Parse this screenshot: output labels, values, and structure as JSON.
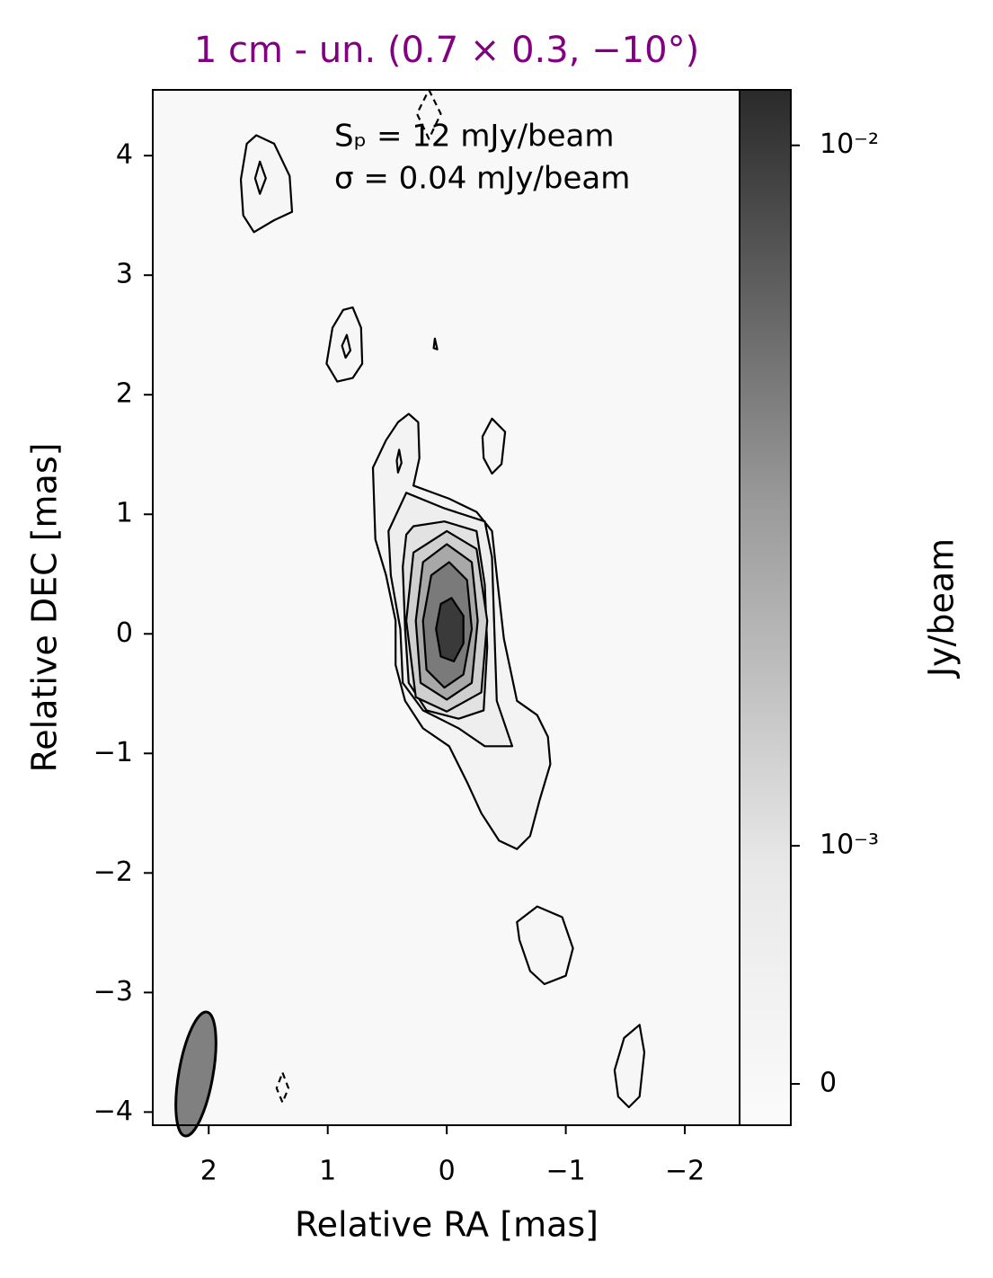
{
  "chart_data": {
    "type": "contour",
    "title": "1 cm - un. (0.7 × 0.3, −10°)",
    "title_color": "#800080",
    "x_label": "Relative RA [mas]",
    "y_label": "Relative DEC [mas]",
    "annotations": [
      "Sₚ = 12 mJy/beam",
      "σ = 0.04 mJy/beam"
    ],
    "xlim": [
      2.47,
      -2.46
    ],
    "ylim": [
      -4.11,
      4.55
    ],
    "xticks": [
      2,
      1,
      0,
      {
        "value": -1,
        "label": "−1"
      },
      {
        "value": -2,
        "label": "−2"
      }
    ],
    "yticks": [
      {
        "value": -4,
        "label": "−4"
      },
      {
        "value": -3,
        "label": "−3"
      },
      {
        "value": -2,
        "label": "−2"
      },
      {
        "value": -1,
        "label": "−1"
      },
      0,
      1,
      2,
      3,
      4
    ],
    "colorbar_label": "Jy/beam",
    "colorbar_scale": "symlog",
    "colorbar_linthresh": 0.0006,
    "colorbar_lim": [
      -0.0003,
      0.012
    ],
    "colorbar_ticks": [
      0,
      {
        "value": 0.001,
        "label": "10⁻³"
      },
      {
        "value": 0.01,
        "label": "10⁻²"
      }
    ],
    "contours": [
      {
        "x": [
          1.6,
          1.45,
          1.32,
          1.3,
          1.45,
          1.62,
          1.71,
          1.73,
          1.68
        ],
        "y": [
          4.17,
          4.1,
          3.83,
          3.53,
          3.46,
          3.36,
          3.5,
          3.8,
          4.1
        ],
        "fill": "#f6f6f6",
        "dashed": false
      },
      {
        "x": [
          1.57,
          1.52,
          1.57,
          1.61
        ],
        "y": [
          3.95,
          3.81,
          3.68,
          3.81
        ],
        "fill": "#f2f2f2",
        "dashed": false
      },
      {
        "x": [
          0.79,
          0.72,
          0.71,
          0.79,
          0.92,
          1.01,
          0.96,
          0.87
        ],
        "y": [
          2.73,
          2.56,
          2.26,
          2.14,
          2.11,
          2.26,
          2.56,
          2.71
        ],
        "fill": "#f6f6f6",
        "dashed": false
      },
      {
        "x": [
          0.84,
          0.81,
          0.85,
          0.88
        ],
        "y": [
          2.5,
          2.37,
          2.31,
          2.41
        ],
        "fill": "#f2f2f2",
        "dashed": false
      },
      {
        "x": [
          0.1,
          0.08,
          0.11
        ],
        "y": [
          2.47,
          2.38,
          2.39
        ],
        "fill": "#f2f2f2",
        "dashed": false
      },
      {
        "x": [
          -0.38,
          -0.49,
          -0.46,
          -0.38,
          -0.31,
          -0.3
        ],
        "y": [
          1.8,
          1.69,
          1.42,
          1.34,
          1.47,
          1.65
        ],
        "fill": "#f6f6f6",
        "dashed": false
      },
      {
        "x": [
          0.32,
          0.24,
          0.23,
          0.28,
          -0.02,
          -0.25,
          -0.38,
          -0.42,
          -0.48,
          -0.59,
          -0.76,
          -0.85,
          -0.87,
          -0.78,
          -0.7,
          -0.59,
          -0.44,
          -0.29,
          -0.17,
          -0.02,
          0.2,
          0.35,
          0.43,
          0.43,
          0.51,
          0.6,
          0.62,
          0.51,
          0.41
        ],
        "y": [
          1.84,
          1.77,
          1.47,
          1.24,
          1.13,
          1.02,
          0.86,
          0.49,
          -0.04,
          -0.56,
          -0.68,
          -0.86,
          -1.09,
          -1.39,
          -1.69,
          -1.8,
          -1.73,
          -1.5,
          -1.24,
          -0.94,
          -0.79,
          -0.56,
          -0.26,
          0.11,
          0.49,
          0.79,
          1.39,
          1.62,
          1.77
        ],
        "fill": "#f3f3f3",
        "dashed": false
      },
      {
        "x": [
          0.4,
          0.38,
          0.41,
          0.42
        ],
        "y": [
          1.54,
          1.43,
          1.35,
          1.45
        ],
        "fill": "#eeeeee",
        "dashed": false
      },
      {
        "x": [
          0.34,
          0.02,
          -0.32,
          -0.38,
          -0.4,
          -0.42,
          -0.55,
          -0.32,
          -0.1,
          0.2,
          0.37,
          0.39,
          0.47,
          0.49
        ],
        "y": [
          1.18,
          1.05,
          0.94,
          0.64,
          0.04,
          -0.56,
          -0.94,
          -0.94,
          -0.79,
          -0.64,
          -0.41,
          0.04,
          0.49,
          0.86
        ],
        "fill": "#eeeeee",
        "dashed": false
      },
      {
        "x": [
          0.28,
          0.02,
          -0.25,
          -0.32,
          -0.34,
          -0.31,
          -0.1,
          0.17,
          0.32,
          0.35,
          0.37,
          0.34
        ],
        "y": [
          0.9,
          0.94,
          0.86,
          0.41,
          -0.11,
          -0.64,
          -0.71,
          -0.64,
          -0.41,
          0.04,
          0.56,
          0.83
        ],
        "fill": "#e2e2e2",
        "dashed": false
      },
      {
        "x": [
          0,
          -0.25,
          -0.34,
          -0.29,
          0,
          0.26,
          0.34,
          0.28
        ],
        "y": [
          0.86,
          0.71,
          0.11,
          -0.49,
          -0.65,
          -0.53,
          0.11,
          0.68
        ],
        "fill": "#cfcfcf",
        "dashed": false
      },
      {
        "x": [
          0,
          -0.21,
          -0.26,
          -0.21,
          0,
          0.22,
          0.26,
          0.2
        ],
        "y": [
          0.75,
          0.6,
          0.11,
          -0.41,
          -0.55,
          -0.41,
          0.11,
          0.6
        ],
        "fill": "#a8a8a8",
        "dashed": false
      },
      {
        "x": [
          -0.02,
          -0.17,
          -0.21,
          -0.14,
          0.02,
          0.17,
          0.2,
          0.13
        ],
        "y": [
          0.6,
          0.45,
          0.04,
          -0.34,
          -0.45,
          -0.3,
          0.11,
          0.49
        ],
        "fill": "#7a7a7a",
        "dashed": false
      },
      {
        "x": [
          -0.04,
          -0.14,
          -0.14,
          -0.06,
          0.05,
          0.09,
          0.05
        ],
        "y": [
          0.3,
          0.15,
          -0.08,
          -0.23,
          -0.19,
          0.04,
          0.25
        ],
        "fill": "#3a3a3a",
        "dashed": false
      },
      {
        "x": [
          -0.76,
          -0.97,
          -1.06,
          -1.0,
          -0.82,
          -0.7,
          -0.61,
          -0.59
        ],
        "y": [
          -2.28,
          -2.37,
          -2.63,
          -2.86,
          -2.93,
          -2.82,
          -2.56,
          -2.41
        ],
        "fill": "#f6f6f6",
        "dashed": false
      },
      {
        "x": [
          -1.62,
          -1.66,
          -1.62,
          -1.53,
          -1.44,
          -1.41,
          -1.49
        ],
        "y": [
          -3.27,
          -3.5,
          -3.87,
          -3.96,
          -3.87,
          -3.65,
          -3.38
        ],
        "fill": "#f6f6f6",
        "dashed": false
      },
      {
        "x": [
          0.15,
          0.05,
          0.15,
          0.25
        ],
        "y": [
          4.55,
          4.35,
          4.14,
          4.35
        ],
        "fill": "none",
        "dashed": true
      },
      {
        "x": [
          1.38,
          1.33,
          1.38,
          1.43
        ],
        "y": [
          -3.67,
          -3.8,
          -3.92,
          -3.8
        ],
        "fill": "none",
        "dashed": true
      }
    ]
  }
}
